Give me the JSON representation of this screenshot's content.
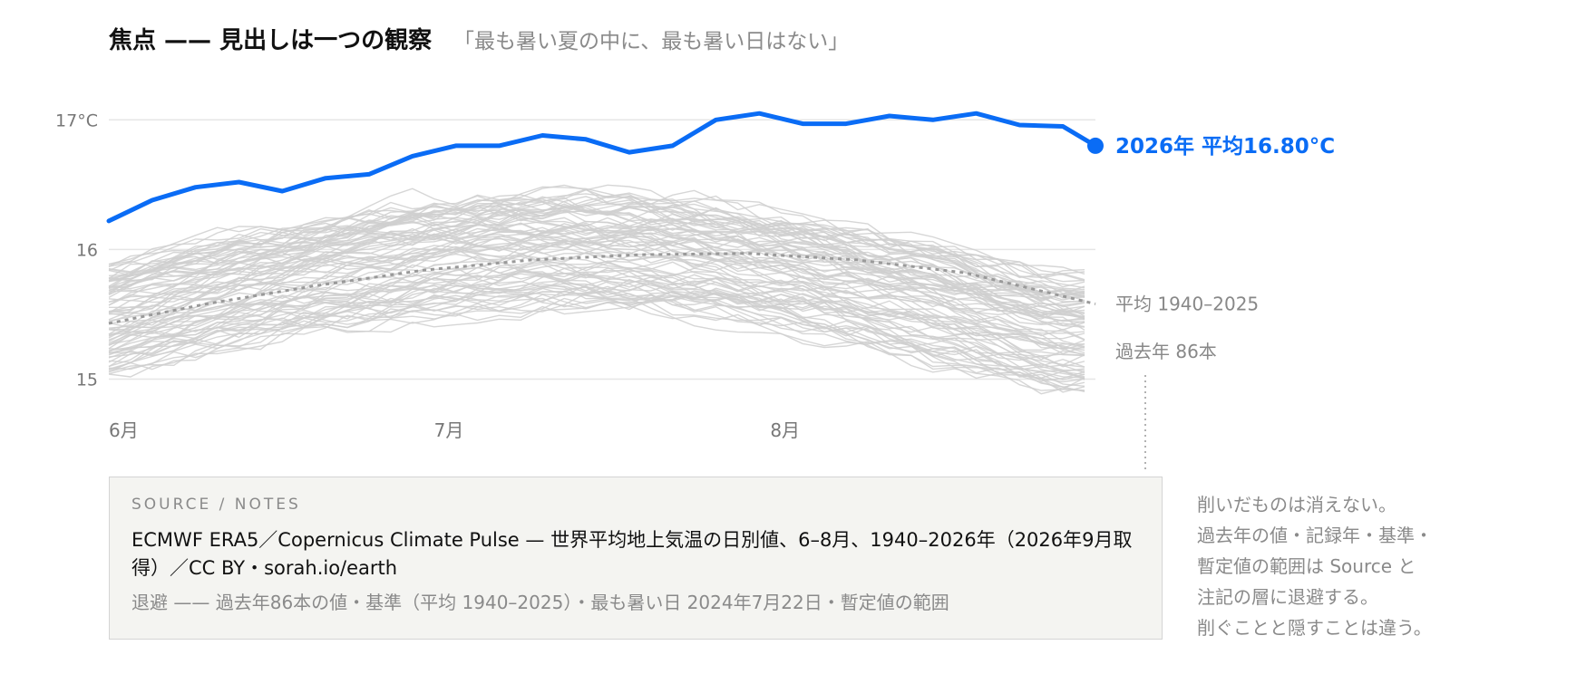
{
  "header": {
    "title": "焦点 —— 見出しは一つの観察",
    "subtitle": "「最も暑い夏の中に、最も暑い日はない」"
  },
  "chart_data": {
    "type": "line",
    "title": "焦点 —— 見出しは一つの観察",
    "subtitle": "「最も暑い夏の中に、最も暑い日はない」",
    "xlabel": "",
    "ylabel": "",
    "x_range": [
      "06-01",
      "08-31"
    ],
    "ylim": [
      14.85,
      17.1
    ],
    "y_ticks": [
      {
        "value": 17,
        "label": "17°C"
      },
      {
        "value": 16,
        "label": "16"
      },
      {
        "value": 15,
        "label": "15"
      }
    ],
    "x_ticks": [
      {
        "date": "06-01",
        "label": "6月"
      },
      {
        "date": "07-01",
        "label": "7月"
      },
      {
        "date": "08-01",
        "label": "8月"
      }
    ],
    "grid": "horizontal",
    "highlight": {
      "year": 2026,
      "label": "2026年 平均16.80°C",
      "mean": 16.8,
      "color": "#0a6cf5",
      "x": [
        "06-01",
        "06-05",
        "06-09",
        "06-13",
        "06-17",
        "06-21",
        "06-25",
        "06-29",
        "07-03",
        "07-07",
        "07-11",
        "07-15",
        "07-19",
        "07-23",
        "07-27",
        "07-31",
        "08-04",
        "08-08",
        "08-12",
        "08-16",
        "08-20",
        "08-24",
        "08-28",
        "08-31"
      ],
      "y": [
        16.22,
        16.38,
        16.48,
        16.52,
        16.45,
        16.55,
        16.58,
        16.72,
        16.8,
        16.8,
        16.88,
        16.85,
        16.75,
        16.8,
        17.0,
        17.05,
        16.97,
        16.97,
        17.03,
        17.0,
        17.05,
        16.96,
        16.95,
        16.8
      ]
    },
    "baseline": {
      "label": "平均 1940–2025",
      "color": "#999999",
      "x": [
        "06-01",
        "06-10",
        "06-20",
        "06-30",
        "07-10",
        "07-20",
        "07-30",
        "08-09",
        "08-19",
        "08-31"
      ],
      "y": [
        15.43,
        15.58,
        15.72,
        15.84,
        15.92,
        15.96,
        15.97,
        15.92,
        15.82,
        15.58
      ]
    },
    "background": {
      "label": "過去年 86本",
      "count": 86,
      "color": "#cfcfcf"
    }
  },
  "source": {
    "heading": "SOURCE / NOTES",
    "body": "ECMWF ERA5／Copernicus Climate Pulse — 世界平均地上気温の日別値、6–8月、1940–2026年（2026年9月取得）／CC BY・sorah.io/earth",
    "note": "退避 —— 過去年86本の値・基準（平均 1940–2025）・最も暑い日 2024年7月22日・暫定値の範囲"
  },
  "side_note": [
    "削いだものは消えない。",
    "過去年の値・記録年・基準・",
    "暫定値の範囲は Source と",
    "注記の層に退避する。",
    "削ぐことと隠すことは違う。"
  ]
}
